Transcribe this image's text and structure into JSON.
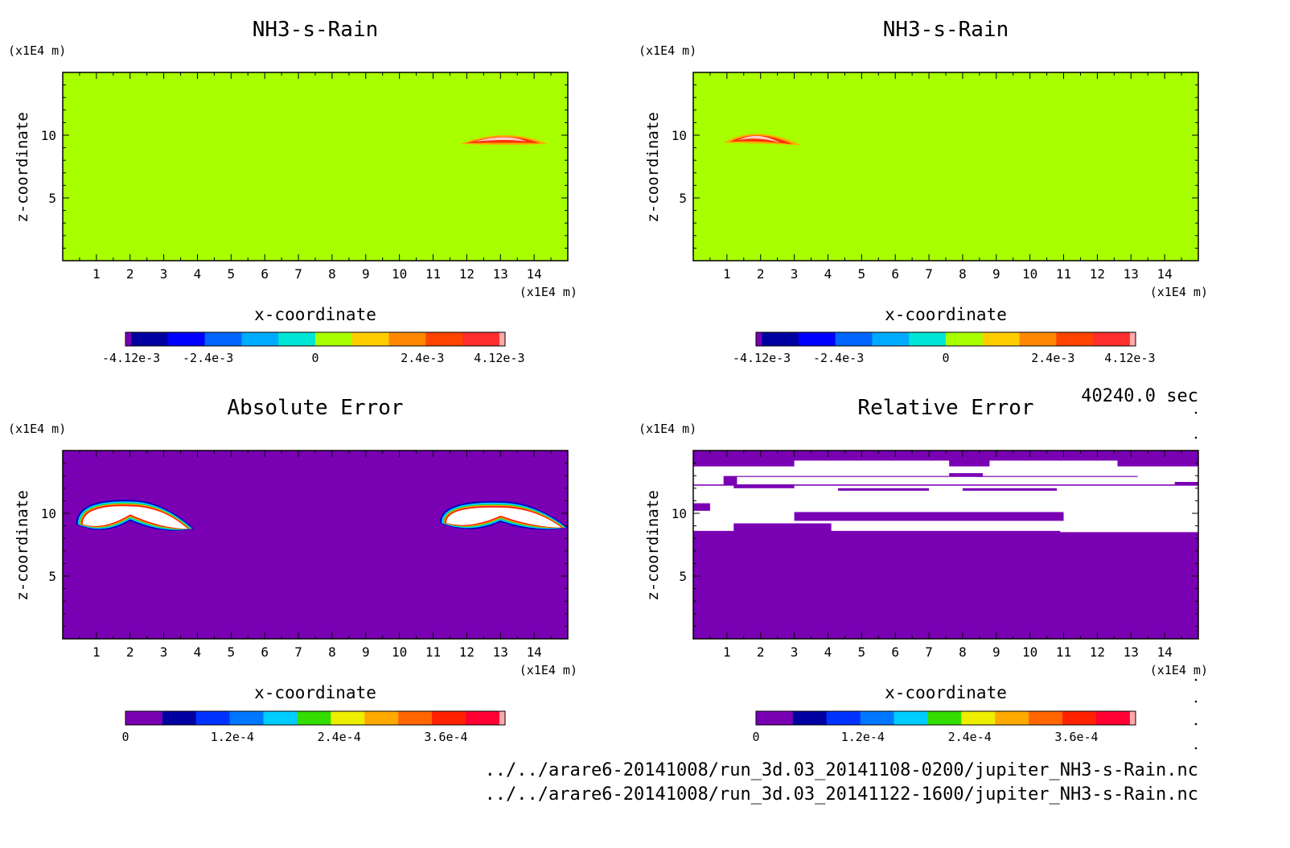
{
  "time_label": "40240.0 sec",
  "footer": {
    "file_1": "../../arare6-20141008/run_3d.03_20141108-0200/jupiter_NH3-s-Rain.nc",
    "file_2": "../../arare6-20141008/run_3d.03_20141122-1600/jupiter_NH3-s-Rain.nc"
  },
  "colors": {
    "signed_scale": [
      "#7a00b4",
      "#0000a0",
      "#0000ff",
      "#0066ff",
      "#00aaff",
      "#00e5d5",
      "#a8ff00",
      "#ffcc00",
      "#ff8800",
      "#ff4400",
      "#ff2d2d",
      "#ffaaaa"
    ],
    "error_scale": [
      "#7a00b4",
      "#0000a0",
      "#0033ff",
      "#0077ff",
      "#00ccff",
      "#33dd00",
      "#eeee00",
      "#ffaa00",
      "#ff6600",
      "#ff2200",
      "#ff0033",
      "#ffaaaa"
    ]
  },
  "chart_data": [
    {
      "type": "heatmap",
      "title": "NH3-s-Rain",
      "xlabel": "x-coordinate",
      "ylabel": "z-coordinate",
      "x_unit": "(x1E4 m)",
      "y_unit": "(x1E4 m)",
      "xlim": [
        0,
        15
      ],
      "ylim": [
        0,
        15
      ],
      "xticks": [
        "1",
        "2",
        "3",
        "4",
        "5",
        "6",
        "7",
        "8",
        "9",
        "10",
        "11",
        "12",
        "13",
        "14"
      ],
      "yticks": [
        "5",
        "10"
      ],
      "background_value": 0,
      "features": [
        {
          "type": "band",
          "x": [
            11.8,
            13.2,
            14.4
          ],
          "z": [
            9.3,
            9.8,
            9.3
          ],
          "value": 0.0036
        }
      ],
      "colorbar": {
        "scale": "signed_scale",
        "range": [
          -0.00412,
          0.00412
        ],
        "labels": [
          "-4.12e-3",
          "-2.4e-3",
          "0",
          "2.4e-3",
          "4.12e-3"
        ]
      }
    },
    {
      "type": "heatmap",
      "title": "NH3-s-Rain",
      "xlabel": "x-coordinate",
      "ylabel": "z-coordinate",
      "x_unit": "(x1E4 m)",
      "y_unit": "(x1E4 m)",
      "xlim": [
        0,
        15
      ],
      "ylim": [
        0,
        15
      ],
      "xticks": [
        "1",
        "2",
        "3",
        "4",
        "5",
        "6",
        "7",
        "8",
        "9",
        "10",
        "11",
        "12",
        "13",
        "14"
      ],
      "yticks": [
        "5",
        "10"
      ],
      "background_value": 0,
      "features": [
        {
          "type": "band",
          "x": [
            0.9,
            1.9,
            3.2
          ],
          "z": [
            9.4,
            10.0,
            9.2
          ],
          "value": 0.0038
        }
      ],
      "colorbar": {
        "scale": "signed_scale",
        "range": [
          -0.00412,
          0.00412
        ],
        "labels": [
          "-4.12e-3",
          "-2.4e-3",
          "0",
          "2.4e-3",
          "4.12e-3"
        ]
      }
    },
    {
      "type": "heatmap",
      "title": "Absolute Error",
      "xlabel": "x-coordinate",
      "ylabel": "z-coordinate",
      "x_unit": "(x1E4 m)",
      "y_unit": "(x1E4 m)",
      "xlim": [
        0,
        15
      ],
      "ylim": [
        0,
        15
      ],
      "xticks": [
        "1",
        "2",
        "3",
        "4",
        "5",
        "6",
        "7",
        "8",
        "9",
        "10",
        "11",
        "12",
        "13",
        "14"
      ],
      "yticks": [
        "5",
        "10"
      ],
      "background_value": 0,
      "features": [
        {
          "type": "blob",
          "x": [
            0.4,
            2.0,
            3.9
          ],
          "z": [
            9.0,
            10.3,
            8.9
          ],
          "value": 0.00048
        },
        {
          "type": "blob",
          "x": [
            11.2,
            13.0,
            15.0
          ],
          "z": [
            9.1,
            10.2,
            9.0
          ],
          "value": 0.00048
        }
      ],
      "colorbar": {
        "scale": "error_scale",
        "range": [
          0,
          0.00042
        ],
        "labels": [
          "0",
          "1.2e-4",
          "2.4e-4",
          "3.6e-4"
        ]
      }
    },
    {
      "type": "heatmap",
      "title": "Relative Error",
      "xlabel": "x-coordinate",
      "ylabel": "z-coordinate",
      "x_unit": "(x1E4 m)",
      "y_unit": "(x1E4 m)",
      "xlim": [
        0,
        15
      ],
      "ylim": [
        0,
        15
      ],
      "xticks": [
        "1",
        "2",
        "3",
        "4",
        "5",
        "6",
        "7",
        "8",
        "9",
        "10",
        "11",
        "12",
        "13",
        "14"
      ],
      "yticks": [
        "5",
        "10"
      ],
      "background_value": 0,
      "features": [
        {
          "type": "region",
          "z_range": [
            8.5,
            14.0
          ],
          "value": "out-of-range (white)"
        }
      ],
      "colorbar": {
        "scale": "error_scale",
        "range": [
          0,
          0.00042
        ],
        "labels": [
          "0",
          "1.2e-4",
          "2.4e-4",
          "3.6e-4"
        ]
      }
    }
  ]
}
